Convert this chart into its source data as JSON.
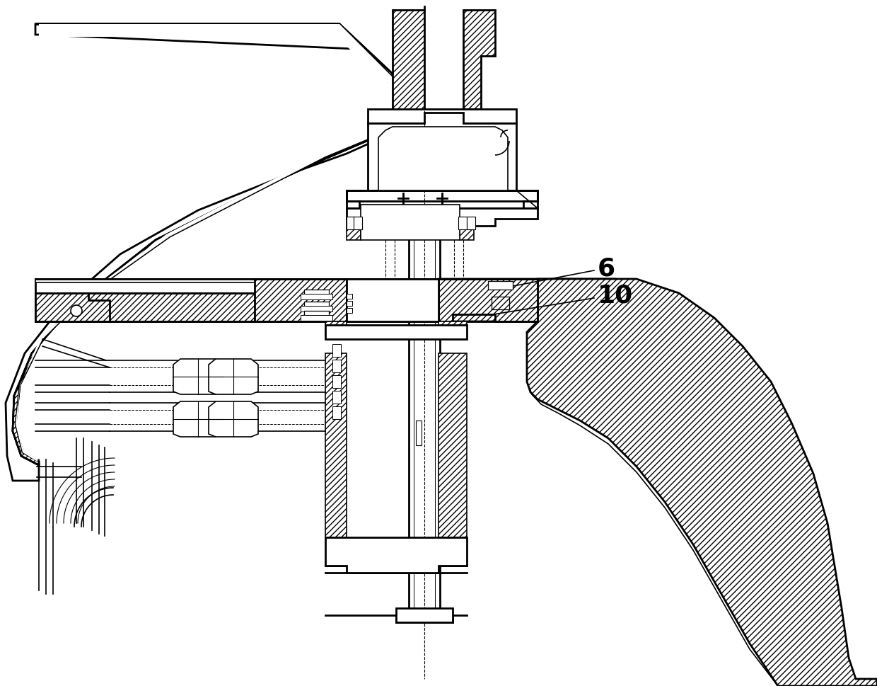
{
  "bg_color": "#ffffff",
  "line_color": "#000000",
  "label_6": "6",
  "label_10": "10",
  "figsize": [
    12.4,
    9.7
  ],
  "dpi": 100
}
